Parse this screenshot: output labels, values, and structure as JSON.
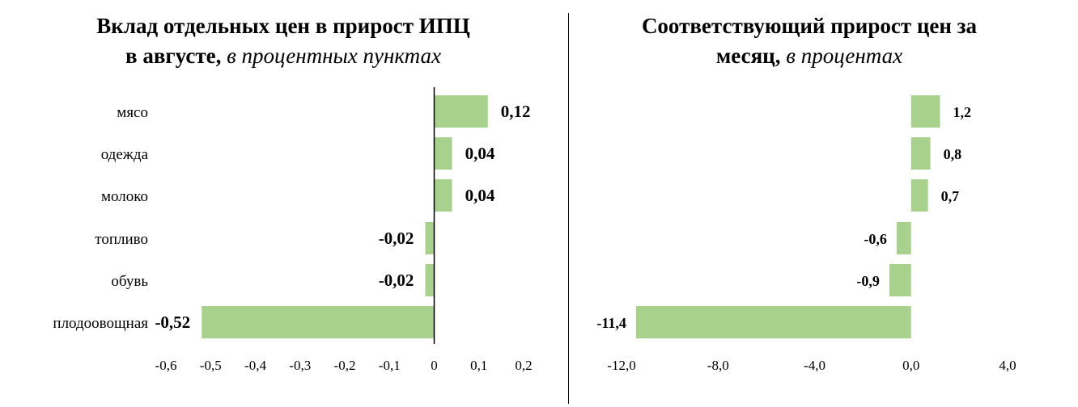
{
  "chart_data": [
    {
      "type": "bar",
      "orientation": "horizontal",
      "title_bold": "Вклад отдельных цен в прирост ИПЦ",
      "title_bold2": "в августе,",
      "title_italic": "в процентных пунктах",
      "categories": [
        "мясо",
        "одежда",
        "молоко",
        "топливо",
        "обувь",
        "плодоовощная"
      ],
      "values": [
        0.12,
        0.04,
        0.04,
        -0.02,
        -0.02,
        -0.52
      ],
      "value_labels": [
        "0,12",
        "0,04",
        "0,04",
        "-0,02",
        "-0,02",
        "-0,52"
      ],
      "xlim": [
        -0.6,
        0.2
      ],
      "ticks": [
        -0.6,
        -0.5,
        -0.4,
        -0.3,
        -0.2,
        -0.1,
        0,
        0.1,
        0.2
      ],
      "tick_labels": [
        "-0,6",
        "-0,5",
        "-0,4",
        "-0,3",
        "-0,2",
        "-0,1",
        "0",
        "0,1",
        "0,2"
      ],
      "bar_color": "#a9d18e",
      "grid": false
    },
    {
      "type": "bar",
      "orientation": "horizontal",
      "title_bold": "Соответствующий прирост цен за",
      "title_bold2": "месяц,",
      "title_italic": "в процентах",
      "categories": [
        "мясо",
        "одежда",
        "молоко",
        "топливо",
        "обувь",
        "плодоовощная"
      ],
      "values": [
        1.2,
        0.8,
        0.7,
        -0.6,
        -0.9,
        -11.4
      ],
      "value_labels": [
        "1,2",
        "0,8",
        "0,7",
        "-0,6",
        "-0,9",
        "-11,4"
      ],
      "xlim": [
        -12.0,
        4.0
      ],
      "ticks": [
        -12,
        -8,
        -4,
        0,
        4
      ],
      "tick_labels": [
        "-12,0",
        "-8,0",
        "-4,0",
        "0,0",
        "4,0"
      ],
      "bar_color": "#a9d18e",
      "grid": false
    }
  ]
}
